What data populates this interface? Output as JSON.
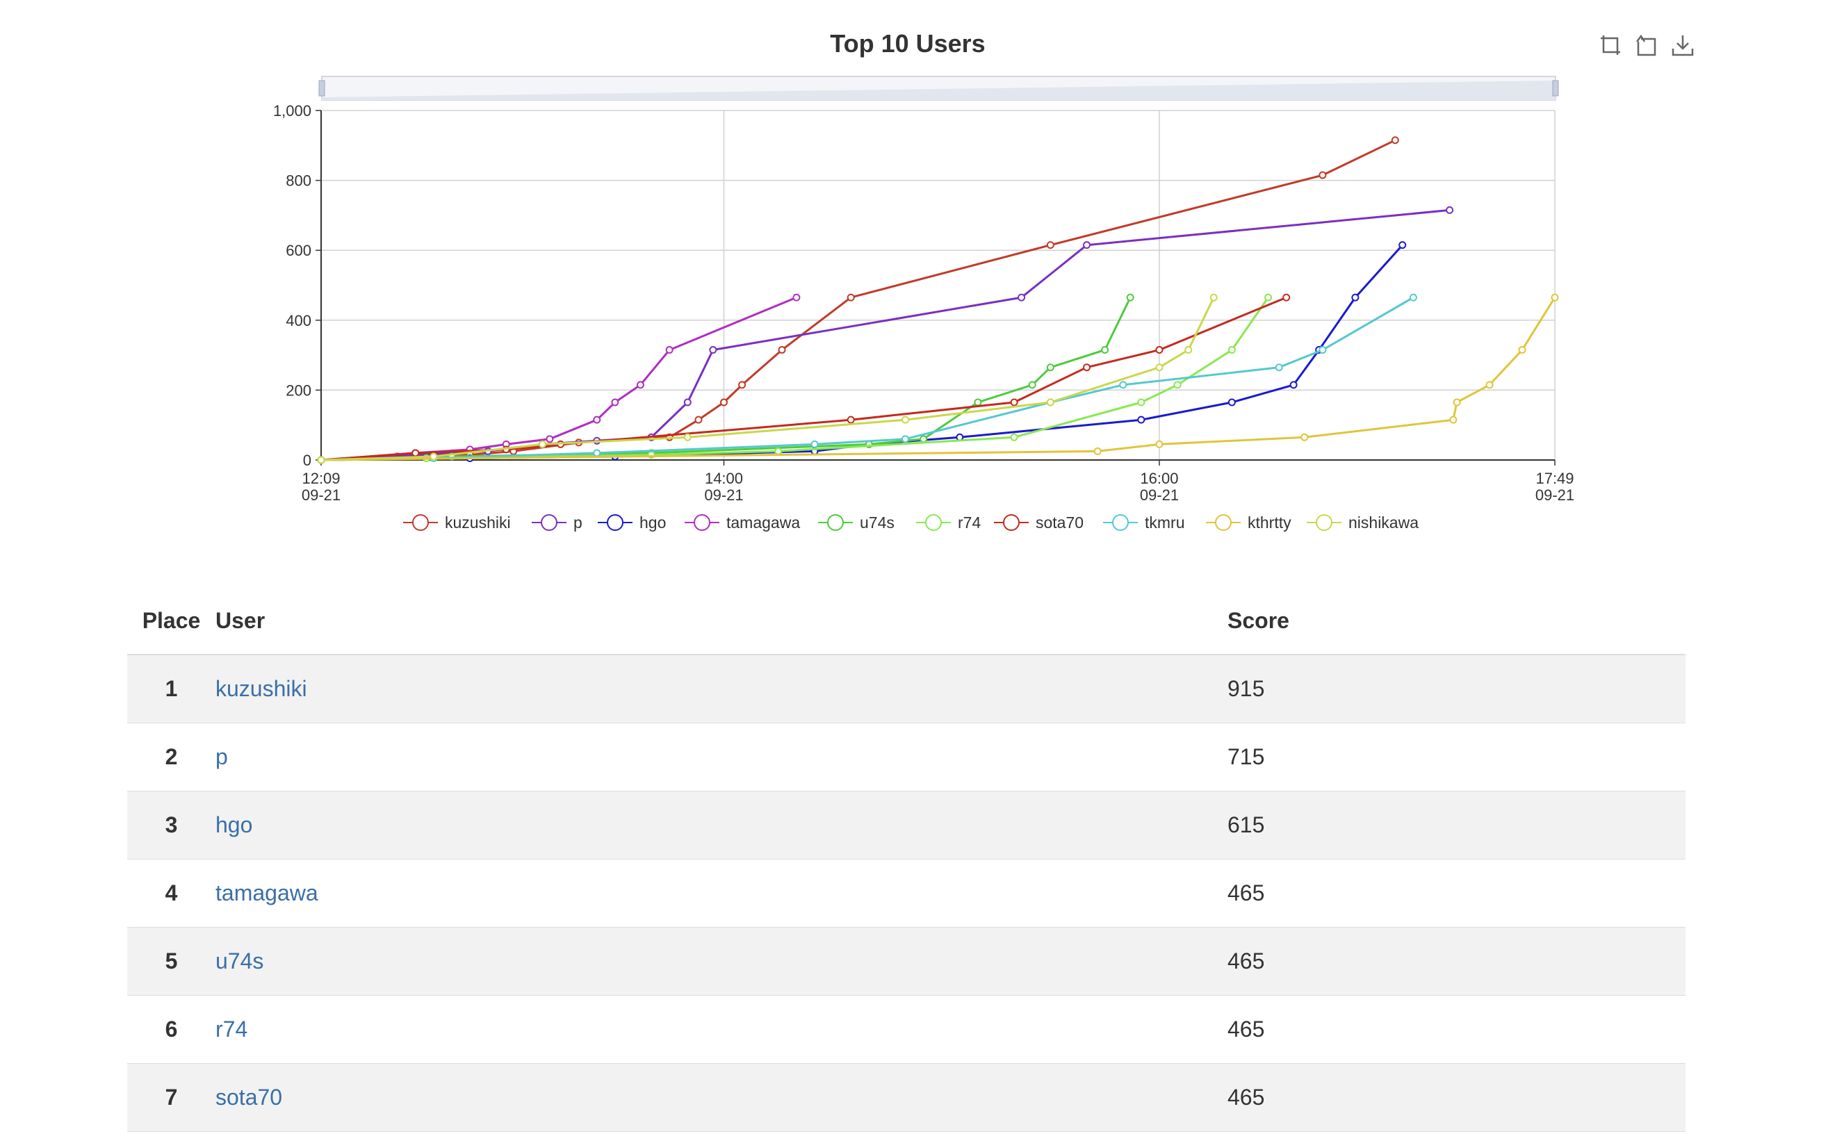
{
  "chart_data": {
    "type": "line",
    "title": "Top 10 Users",
    "ylim": [
      0,
      1000
    ],
    "y_ticks": [
      "0",
      "200",
      "400",
      "600",
      "800",
      "1,000"
    ],
    "y_tick_values": [
      0,
      200,
      400,
      600,
      800,
      1000
    ],
    "x_range": [
      "2017-09-21 12:09",
      "2017-09-21 17:49"
    ],
    "x_ticks": [
      {
        "time": "2017-09-21 12:09",
        "label": "12:09",
        "date": "09-21"
      },
      {
        "time": "2017-09-21 14:00",
        "label": "14:00",
        "date": "09-21"
      },
      {
        "time": "2017-09-21 16:00",
        "label": "16:00",
        "date": "09-21"
      },
      {
        "time": "2017-09-21 17:49",
        "label": "17:49",
        "date": "09-21"
      }
    ],
    "grid": true,
    "legend_position": "bottom",
    "series": [
      {
        "name": "kuzushiki",
        "color": "#c23a2a",
        "points": [
          [
            "12:09",
            0
          ],
          [
            "12:30",
            10
          ],
          [
            "12:50",
            15
          ],
          [
            "13:02",
            25
          ],
          [
            "13:20",
            50
          ],
          [
            "13:45",
            65
          ],
          [
            "13:53",
            115
          ],
          [
            "14:00",
            165
          ],
          [
            "14:05",
            215
          ],
          [
            "14:16",
            315
          ],
          [
            "14:35",
            465
          ],
          [
            "15:30",
            615
          ],
          [
            "16:45",
            815
          ],
          [
            "17:05",
            915
          ]
        ]
      },
      {
        "name": "p",
        "color": "#7b2fc0",
        "points": [
          [
            "12:09",
            0
          ],
          [
            "12:35",
            15
          ],
          [
            "12:55",
            25
          ],
          [
            "13:10",
            45
          ],
          [
            "13:25",
            55
          ],
          [
            "13:40",
            65
          ],
          [
            "13:50",
            165
          ],
          [
            "13:57",
            315
          ],
          [
            "15:22",
            465
          ],
          [
            "15:40",
            615
          ],
          [
            "17:20",
            715
          ]
        ]
      },
      {
        "name": "hgo",
        "color": "#1a1ad0",
        "points": [
          [
            "12:09",
            0
          ],
          [
            "12:50",
            5
          ],
          [
            "13:30",
            10
          ],
          [
            "14:25",
            25
          ],
          [
            "14:40",
            45
          ],
          [
            "15:05",
            65
          ],
          [
            "15:55",
            115
          ],
          [
            "16:20",
            165
          ],
          [
            "16:37",
            215
          ],
          [
            "16:44",
            315
          ],
          [
            "16:54",
            465
          ],
          [
            "17:07",
            615
          ]
        ]
      },
      {
        "name": "tamagawa",
        "color": "#b02ec0",
        "points": [
          [
            "12:09",
            0
          ],
          [
            "12:35",
            20
          ],
          [
            "12:50",
            30
          ],
          [
            "13:00",
            45
          ],
          [
            "13:12",
            60
          ],
          [
            "13:25",
            115
          ],
          [
            "13:30",
            165
          ],
          [
            "13:37",
            215
          ],
          [
            "13:45",
            315
          ],
          [
            "14:20",
            465
          ]
        ]
      },
      {
        "name": "u74s",
        "color": "#4ccc3c",
        "points": [
          [
            "12:09",
            0
          ],
          [
            "12:45",
            10
          ],
          [
            "13:40",
            20
          ],
          [
            "14:40",
            45
          ],
          [
            "14:55",
            60
          ],
          [
            "15:10",
            165
          ],
          [
            "15:25",
            215
          ],
          [
            "15:30",
            265
          ],
          [
            "15:45",
            315
          ],
          [
            "15:52",
            465
          ]
        ]
      },
      {
        "name": "r74",
        "color": "#8ae850",
        "points": [
          [
            "12:09",
            0
          ],
          [
            "12:38",
            5
          ],
          [
            "13:40",
            15
          ],
          [
            "14:15",
            25
          ],
          [
            "15:20",
            65
          ],
          [
            "15:55",
            165
          ],
          [
            "16:05",
            215
          ],
          [
            "16:20",
            315
          ],
          [
            "16:30",
            465
          ]
        ]
      },
      {
        "name": "sota70",
        "color": "#c42a1e",
        "points": [
          [
            "12:09",
            0
          ],
          [
            "12:35",
            20
          ],
          [
            "13:00",
            30
          ],
          [
            "13:15",
            45
          ],
          [
            "14:35",
            115
          ],
          [
            "15:20",
            165
          ],
          [
            "15:40",
            265
          ],
          [
            "16:00",
            315
          ],
          [
            "16:35",
            465
          ]
        ]
      },
      {
        "name": "tkmru",
        "color": "#56c8cf",
        "points": [
          [
            "12:09",
            0
          ],
          [
            "12:40",
            5
          ],
          [
            "13:25",
            20
          ],
          [
            "14:25",
            45
          ],
          [
            "14:50",
            60
          ],
          [
            "15:30",
            165
          ],
          [
            "15:50",
            215
          ],
          [
            "16:33",
            265
          ],
          [
            "16:45",
            315
          ],
          [
            "17:10",
            465
          ]
        ]
      },
      {
        "name": "kthrtty",
        "color": "#e0c53a",
        "points": [
          [
            "12:09",
            0
          ],
          [
            "15:43",
            25
          ],
          [
            "16:00",
            45
          ],
          [
            "16:40",
            65
          ],
          [
            "17:21",
            115
          ],
          [
            "17:22",
            165
          ],
          [
            "17:31",
            215
          ],
          [
            "17:40",
            315
          ],
          [
            "17:49",
            465
          ]
        ]
      },
      {
        "name": "nishikawa",
        "color": "#c9d84a",
        "points": [
          [
            "12:09",
            0
          ],
          [
            "12:40",
            10
          ],
          [
            "13:10",
            45
          ],
          [
            "13:50",
            65
          ],
          [
            "14:50",
            115
          ],
          [
            "15:30",
            165
          ],
          [
            "16:00",
            265
          ],
          [
            "16:08",
            315
          ],
          [
            "16:15",
            465
          ]
        ]
      }
    ]
  },
  "toolbox": {
    "icons": [
      "zoom-select-icon",
      "zoom-reset-icon",
      "download-icon"
    ]
  },
  "table": {
    "headers": {
      "place": "Place",
      "user": "User",
      "score": "Score"
    },
    "rows": [
      {
        "place": "1",
        "user": "kuzushiki",
        "score": "915"
      },
      {
        "place": "2",
        "user": "p",
        "score": "715"
      },
      {
        "place": "3",
        "user": "hgo",
        "score": "615"
      },
      {
        "place": "4",
        "user": "tamagawa",
        "score": "465"
      },
      {
        "place": "5",
        "user": "u74s",
        "score": "465"
      },
      {
        "place": "6",
        "user": "r74",
        "score": "465"
      },
      {
        "place": "7",
        "user": "sota70",
        "score": "465"
      }
    ]
  }
}
